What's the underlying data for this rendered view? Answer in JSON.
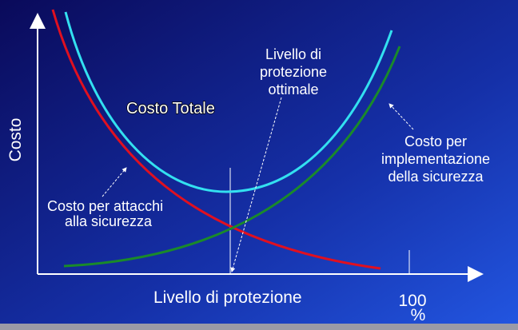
{
  "axes": {
    "y_label": "Costo",
    "x_label": "Livello di protezione",
    "x_end_label": "100",
    "x_end_unit": "%"
  },
  "curves": [
    {
      "label_lines": [
        "Costo Totale"
      ]
    },
    {
      "label_lines": [
        "Costo per attacchi",
        "alla sicurezza"
      ]
    },
    {
      "label_lines": [
        "Costo per",
        "implementazione",
        "della sicurezza"
      ]
    }
  ],
  "optimum": {
    "label_lines": [
      "Livello di",
      "protezione",
      "ottimale"
    ]
  }
}
